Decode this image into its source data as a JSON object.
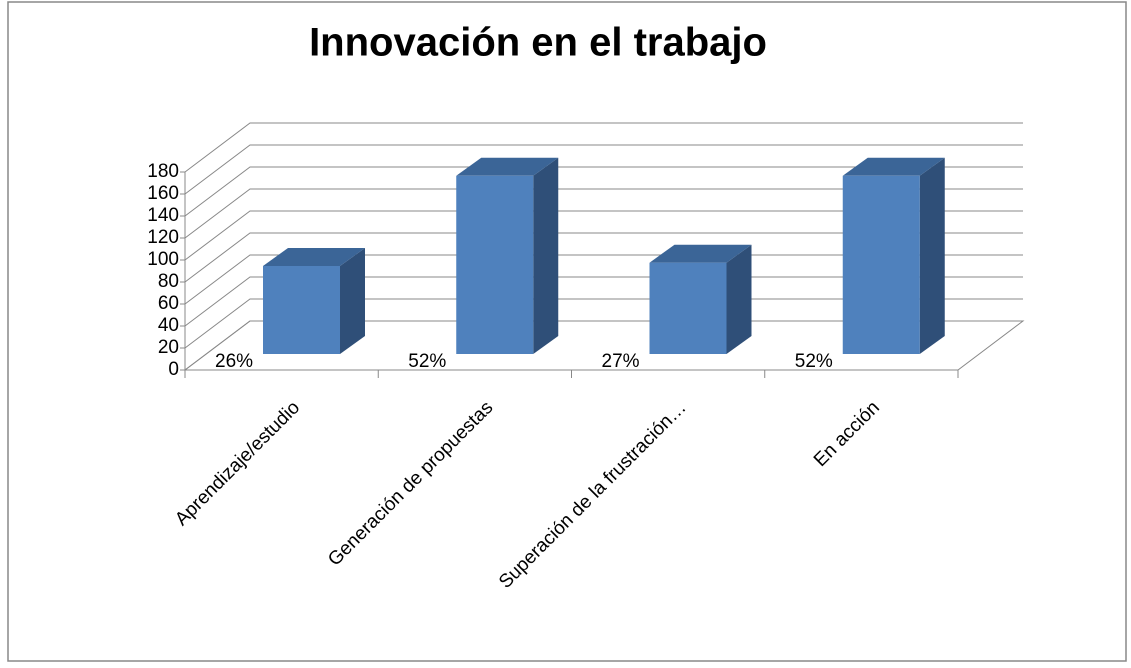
{
  "chart_data": {
    "type": "bar3d",
    "title": "Innovación en el trabajo",
    "categories": [
      "Aprendizaje/estudio",
      "Generación de propuestas",
      "Superación de la frustración…",
      "En acción"
    ],
    "values": [
      80,
      162,
      83,
      162
    ],
    "annotations": [
      "26%",
      "52%",
      "27%",
      "52%"
    ],
    "color": "#4f81bd",
    "ylim": [
      0,
      180
    ],
    "yticks": [
      0,
      20,
      40,
      60,
      80,
      100,
      120,
      140,
      160,
      180
    ],
    "grid": true
  }
}
